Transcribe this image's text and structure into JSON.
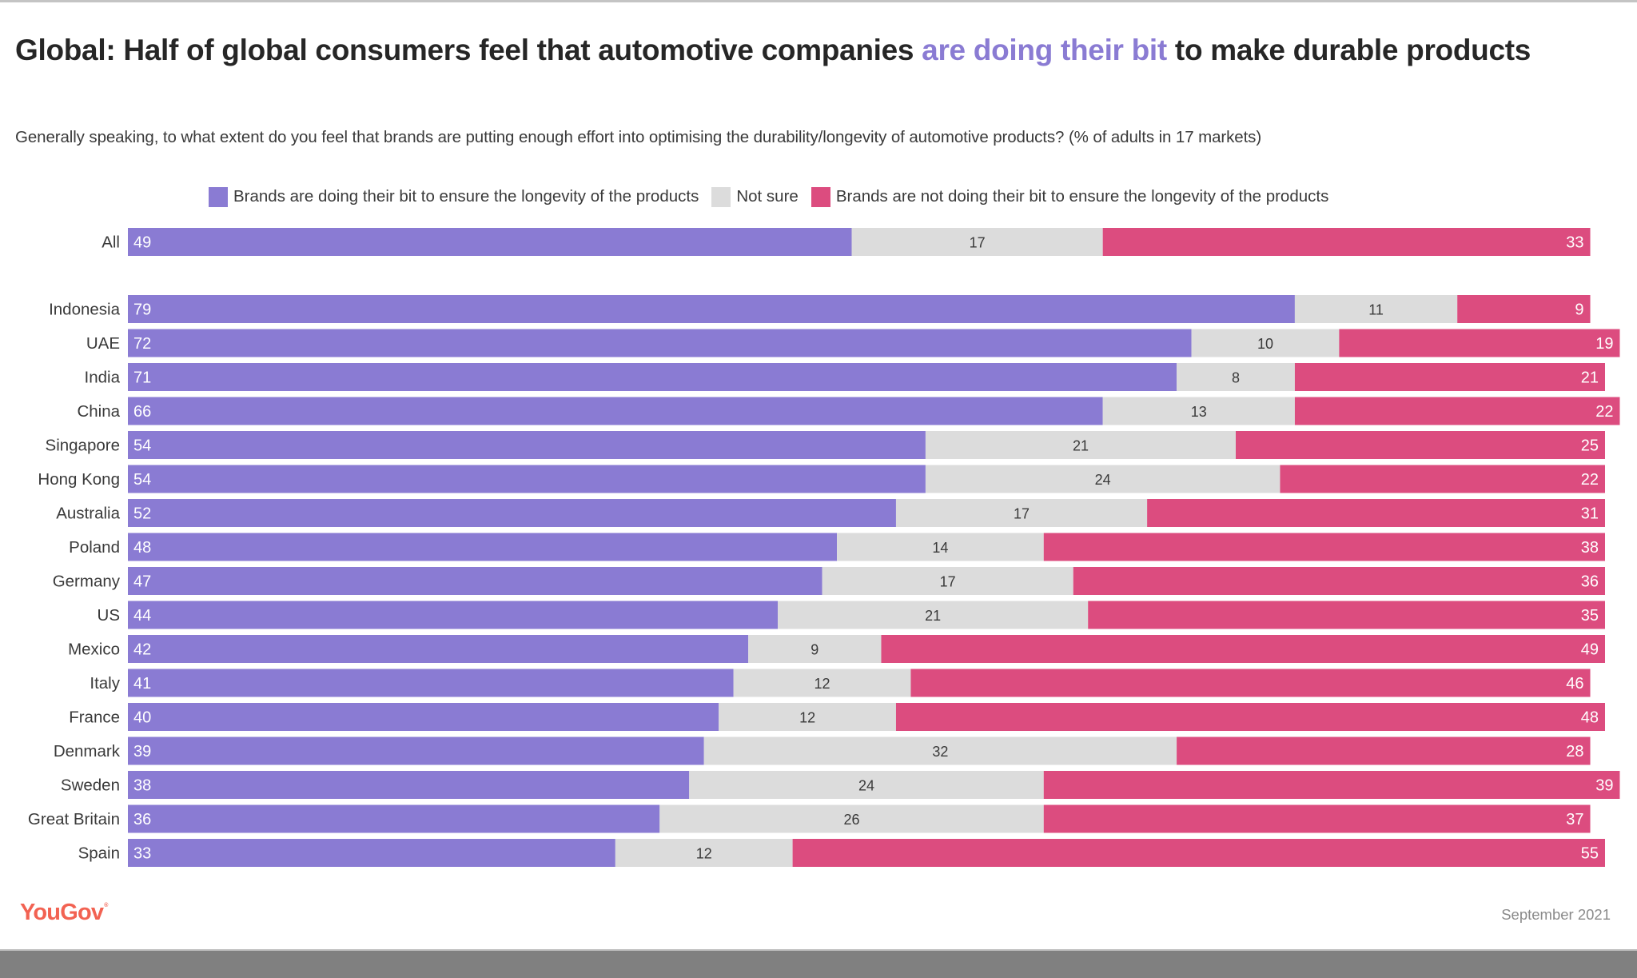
{
  "header": {
    "title_pre": "Global: Half of global consumers feel that automotive companies ",
    "title_highlight": "are doing their bit",
    "title_post": " to make durable products",
    "subtitle": "Generally speaking, to what extent do you feel that brands are putting enough effort into optimising the durability/longevity of automotive products? (% of adults in 17 markets)"
  },
  "colors": {
    "doing": "#8a7bd3",
    "not_sure": "#dcdcdc",
    "not_doing": "#dc4c7f",
    "highlight": "#8a7bd3",
    "brand": "#f26252"
  },
  "footer": {
    "logo": "YouGov",
    "logo_mark": "®",
    "date": "September 2021"
  },
  "chart_data": {
    "type": "bar",
    "orientation": "horizontal",
    "stacked": true,
    "title": "Global: Half of global consumers feel that automotive companies are doing their bit to make durable products",
    "subtitle": "Generally speaking, to what extent do you feel that brands are putting enough effort into optimising the durability/longevity of automotive products? (% of adults in 17 markets)",
    "xlabel": "",
    "ylabel": "",
    "unit": "%",
    "grid": false,
    "legend_position": "top",
    "categories": [
      "All",
      "Indonesia",
      "UAE",
      "India",
      "China",
      "Singapore",
      "Hong Kong",
      "Australia",
      "Poland",
      "Germany",
      "US",
      "Mexico",
      "Italy",
      "France",
      "Denmark",
      "Sweden",
      "Great Britain",
      "Spain"
    ],
    "series": [
      {
        "name": "Brands are doing their bit to ensure the longevity of the products",
        "color": "#8a7bd3",
        "values": [
          49,
          79,
          72,
          71,
          66,
          54,
          54,
          52,
          48,
          47,
          44,
          42,
          41,
          40,
          39,
          38,
          36,
          33
        ]
      },
      {
        "name": "Not sure",
        "color": "#dcdcdc",
        "values": [
          17,
          11,
          10,
          8,
          13,
          21,
          24,
          17,
          14,
          17,
          21,
          9,
          12,
          12,
          32,
          24,
          26,
          12
        ]
      },
      {
        "name": "Brands are not doing their bit to ensure the longevity of the products",
        "color": "#dc4c7f",
        "values": [
          33,
          9,
          19,
          21,
          22,
          25,
          22,
          31,
          38,
          36,
          35,
          49,
          46,
          48,
          28,
          39,
          37,
          55
        ]
      }
    ]
  }
}
